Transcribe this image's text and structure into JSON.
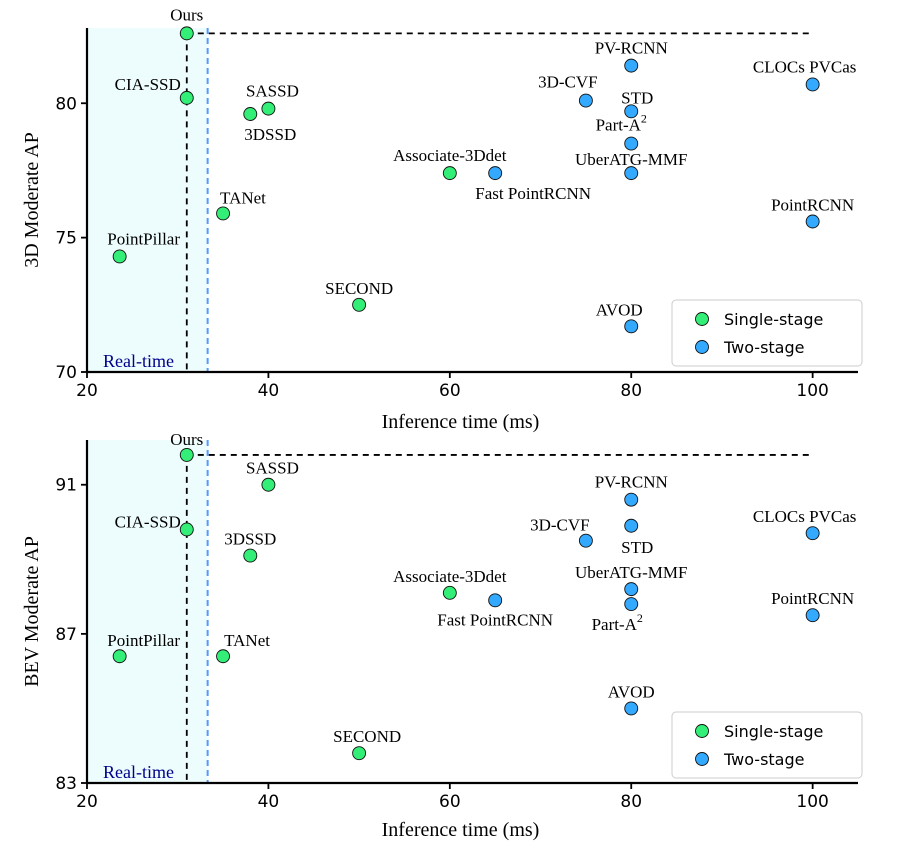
{
  "chart_data": [
    {
      "type": "scatter",
      "xlabel": "Inference time (ms)",
      "ylabel": "3D Moderate AP",
      "xlim": [
        20,
        105
      ],
      "ylim": [
        70,
        82.8
      ],
      "xticks": [
        20,
        40,
        60,
        80,
        100
      ],
      "yticks": [
        70,
        75,
        80
      ],
      "realtime_label": "Real-time",
      "realtime_x": 33.3,
      "ours_line_y": 82.6,
      "ours_line_x": [
        31,
        100
      ],
      "legend": {
        "position": "lower-right",
        "entries": [
          "Single-stage",
          "Two-stage"
        ]
      },
      "colors": {
        "single": "#33ee77",
        "two": "#33aaff",
        "ours_label": "#ff0000",
        "realtime_text": "#00008b",
        "realtime_region": "#edfcfc",
        "realtime_line": "#5599ff"
      },
      "points": [
        {
          "name": "Ours",
          "x": 31,
          "y": 82.6,
          "stage": "single"
        },
        {
          "name": "CIA-SSD",
          "x": 31,
          "y": 80.2,
          "stage": "single"
        },
        {
          "name": "SASSD",
          "x": 40,
          "y": 79.8,
          "stage": "single"
        },
        {
          "name": "3DSSD",
          "x": 38,
          "y": 79.6,
          "stage": "single"
        },
        {
          "name": "TANet",
          "x": 35,
          "y": 75.9,
          "stage": "single"
        },
        {
          "name": "PointPillar",
          "x": 23.6,
          "y": 74.3,
          "stage": "single"
        },
        {
          "name": "Associate-3Ddet",
          "x": 60,
          "y": 77.4,
          "stage": "single"
        },
        {
          "name": "SECOND",
          "x": 50,
          "y": 72.5,
          "stage": "single"
        },
        {
          "name": "Fast PointRCNN",
          "x": 65,
          "y": 77.4,
          "stage": "two"
        },
        {
          "name": "3D-CVF",
          "x": 75,
          "y": 80.1,
          "stage": "two"
        },
        {
          "name": "PV-RCNN",
          "x": 80,
          "y": 81.4,
          "stage": "two"
        },
        {
          "name": "STD",
          "x": 80,
          "y": 79.7,
          "stage": "two"
        },
        {
          "name": "Part-A",
          "sup": "2",
          "x": 80,
          "y": 78.5,
          "stage": "two"
        },
        {
          "name": "UberATG-MMF",
          "x": 80,
          "y": 77.4,
          "stage": "two"
        },
        {
          "name": "AVOD",
          "x": 80,
          "y": 71.7,
          "stage": "two"
        },
        {
          "name": "CLOCs PVCas",
          "x": 100,
          "y": 80.7,
          "stage": "two"
        },
        {
          "name": "PointRCNN",
          "x": 100,
          "y": 75.6,
          "stage": "two"
        }
      ]
    },
    {
      "type": "scatter",
      "xlabel": "Inference time (ms)",
      "ylabel": "BEV Moderate AP",
      "xlim": [
        20,
        105
      ],
      "ylim": [
        83,
        92.2
      ],
      "xticks": [
        20,
        40,
        60,
        80,
        100
      ],
      "yticks": [
        83,
        87,
        91
      ],
      "realtime_label": "Real-time",
      "realtime_x": 33.3,
      "ours_line_y": 91.8,
      "ours_line_x": [
        31,
        100
      ],
      "legend": {
        "position": "lower-right",
        "entries": [
          "Single-stage",
          "Two-stage"
        ]
      },
      "colors": {
        "single": "#33ee77",
        "two": "#33aaff",
        "ours_label": "#ff0000",
        "realtime_text": "#00008b",
        "realtime_region": "#edfcfc",
        "realtime_line": "#5599ff"
      },
      "points": [
        {
          "name": "Ours",
          "x": 31,
          "y": 91.8,
          "stage": "single"
        },
        {
          "name": "SASSD",
          "x": 40,
          "y": 91.0,
          "stage": "single"
        },
        {
          "name": "CIA-SSD",
          "x": 31,
          "y": 89.8,
          "stage": "single"
        },
        {
          "name": "3DSSD",
          "x": 38,
          "y": 89.1,
          "stage": "single"
        },
        {
          "name": "Associate-3Ddet",
          "x": 60,
          "y": 88.1,
          "stage": "single"
        },
        {
          "name": "PointPillar",
          "x": 23.6,
          "y": 86.4,
          "stage": "single"
        },
        {
          "name": "TANet",
          "x": 35,
          "y": 86.4,
          "stage": "single"
        },
        {
          "name": "SECOND",
          "x": 50,
          "y": 83.8,
          "stage": "single"
        },
        {
          "name": "Fast PointRCNN",
          "x": 65,
          "y": 87.9,
          "stage": "two"
        },
        {
          "name": "3D-CVF",
          "x": 75,
          "y": 89.5,
          "stage": "two"
        },
        {
          "name": "PV-RCNN",
          "x": 80,
          "y": 90.6,
          "stage": "two"
        },
        {
          "name": "STD",
          "x": 80,
          "y": 89.9,
          "stage": "two"
        },
        {
          "name": "UberATG-MMF",
          "x": 80,
          "y": 88.2,
          "stage": "two"
        },
        {
          "name": "Part-A",
          "sup": "2",
          "x": 80,
          "y": 87.8,
          "stage": "two"
        },
        {
          "name": "AVOD",
          "x": 80,
          "y": 85.0,
          "stage": "two"
        },
        {
          "name": "CLOCs PVCas",
          "x": 100,
          "y": 89.7,
          "stage": "two"
        },
        {
          "name": "PointRCNN",
          "x": 100,
          "y": 87.5,
          "stage": "two"
        }
      ]
    }
  ]
}
